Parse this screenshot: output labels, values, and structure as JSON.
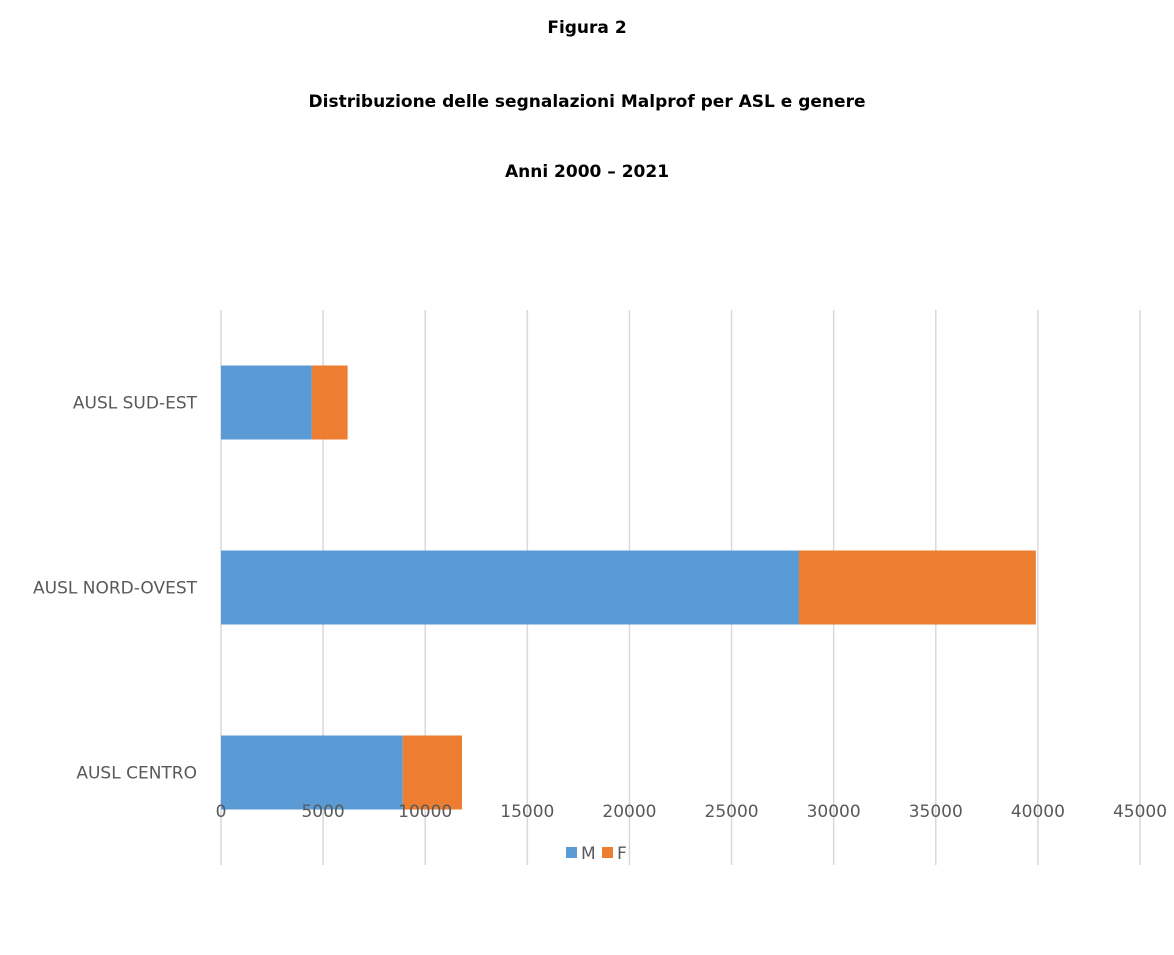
{
  "figure_label": "Figura 2",
  "chart_data": {
    "type": "bar",
    "orientation": "horizontal",
    "stacked": true,
    "title": "Distribuzione delle segnalazioni Malprof per ASL e genere",
    "subtitle": "Anni 2000 – 2021",
    "categories": [
      "AUSL SUD-EST",
      "AUSL NORD-OVEST",
      "AUSL CENTRO"
    ],
    "series": [
      {
        "name": "M",
        "values": [
          4450,
          28300,
          8900
        ],
        "color": "#5b9bd5"
      },
      {
        "name": "F",
        "values": [
          1750,
          11600,
          2900
        ],
        "color": "#ed7d31"
      }
    ],
    "xlim": [
      0,
      45000
    ],
    "xticks": [
      "0",
      "5000",
      "10000",
      "15000",
      "20000",
      "25000",
      "30000",
      "35000",
      "40000",
      "45000"
    ],
    "xtick_values": [
      0,
      5000,
      10000,
      15000,
      20000,
      25000,
      30000,
      35000,
      40000,
      45000
    ],
    "grid": "vertical",
    "legend": "bottom-center",
    "colors": {
      "grid": "#d9d9d9",
      "text": "#595959"
    }
  }
}
